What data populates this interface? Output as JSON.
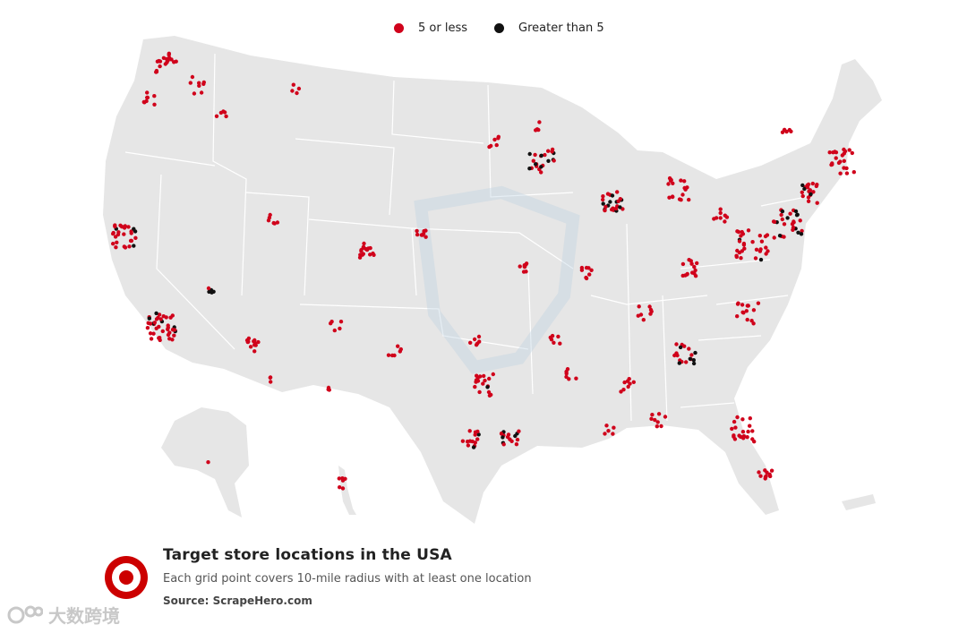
{
  "legend": {
    "low_label": "5 or less",
    "high_label": "Greater than 5",
    "low_color": "#d0021b",
    "high_color": "#111111"
  },
  "caption": {
    "title": "Target store locations in the USA",
    "subtitle": "Each grid point covers 10-mile radius with at least one location",
    "source": "Source: ScrapeHero.com"
  },
  "watermark": {
    "text": "大数跨境"
  },
  "colors": {
    "land": "#e6e6e6",
    "border": "#ffffff",
    "dot_low": "#d0021b",
    "dot_high": "#111111",
    "logo_red": "#cc0000"
  },
  "map": {
    "region": "Contiguous United States, Alaska, Hawaii",
    "dot_categories": [
      "5 or less",
      "Greater than 5"
    ]
  }
}
